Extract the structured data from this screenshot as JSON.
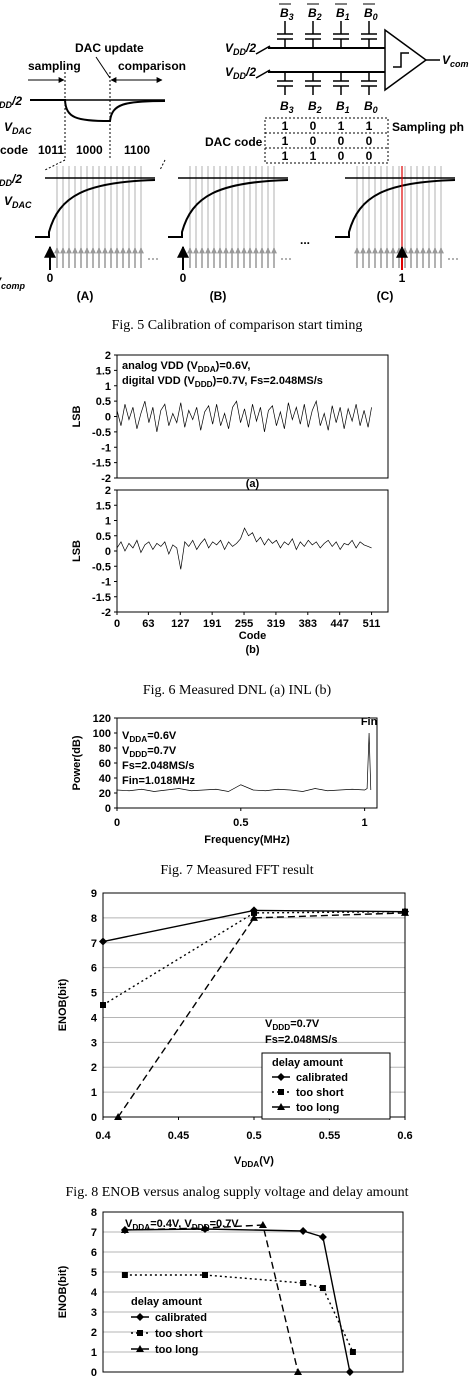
{
  "figure5": {
    "top_bits": [
      [
        "B",
        {
          "sub": "3"
        }
      ],
      [
        "B",
        {
          "sub": "2"
        }
      ],
      [
        "B",
        {
          "sub": "1"
        }
      ],
      [
        "B",
        {
          "sub": "0"
        }
      ]
    ],
    "bottom_bits": [
      [
        "B",
        {
          "sub": "3"
        }
      ],
      [
        "B",
        {
          "sub": "2"
        }
      ],
      [
        "B",
        {
          "sub": "1"
        }
      ],
      [
        "B",
        {
          "sub": "0"
        }
      ]
    ],
    "vdd_half_top": [
      "V",
      {
        "sub": "DD"
      },
      "/2"
    ],
    "vdd_half_bottom": [
      "V",
      {
        "sub": "DD"
      },
      "/2"
    ],
    "comparator_output": [
      "V",
      {
        "sub": "com"
      }
    ],
    "dac_code_label": "DAC code",
    "sampling_phase_label": "Sampling ph",
    "dac_code_rows": [
      [
        "1",
        "0",
        "1",
        "1"
      ],
      [
        "1",
        "0",
        "0",
        "0"
      ],
      [
        "1",
        "1",
        "0",
        "0"
      ]
    ],
    "timing": {
      "dac_update": "DAC update",
      "sampling": "sampling",
      "comparison": "comparison",
      "vdd_half": [
        "V",
        {
          "sub": "DD"
        },
        "/2"
      ],
      "vdac": [
        "V",
        {
          "sub": "DAC"
        }
      ],
      "code_label": "code",
      "codes": [
        "1011",
        "1000",
        "1100"
      ]
    },
    "panel_vdd_half": [
      "V",
      {
        "sub": "DD"
      },
      "/2"
    ],
    "panel_vdac": [
      "V",
      {
        "sub": "DAC"
      }
    ],
    "panel_vcomp": [
      "V",
      {
        "sub": "comp"
      }
    ],
    "ellipsis": "...",
    "panels": [
      {
        "label": "(A)",
        "start": 0,
        "start_color": "#000000"
      },
      {
        "label": "(B)",
        "start": 0,
        "start_color": "#000000"
      },
      {
        "label": "(C)",
        "start": 1,
        "start_color": "#e00000"
      }
    ]
  },
  "captions": {
    "fig5": "Fig. 5 Calibration of comparison start timing",
    "fig6": "Fig. 6 Measured DNL (a)  INL (b)",
    "fig7": "Fig. 7 Measured FFT result",
    "fig8": "Fig. 8 ENOB versus analog supply voltage and delay amount"
  },
  "chart_data": [
    {
      "type": "line",
      "y_label": "LSB",
      "panel_label": "(a)",
      "color": "#000000",
      "grid": false,
      "annotations": [
        [
          "analog VDD (V",
          {
            "sub": "DDA"
          },
          ")=0.6V,"
        ],
        [
          "digital VDD (V",
          {
            "sub": "DDD"
          },
          ")=0.7V, Fs=2.048MS/s"
        ]
      ],
      "xlim": [
        0,
        544
      ],
      "ylim": [
        -2,
        2
      ],
      "yticks": [
        2,
        1.5,
        1,
        0.5,
        0,
        -0.5,
        -1,
        -1.5,
        -2
      ],
      "x": [
        0,
        8,
        16,
        24,
        32,
        40,
        48,
        56,
        64,
        72,
        80,
        88,
        96,
        104,
        112,
        120,
        128,
        136,
        144,
        152,
        160,
        168,
        176,
        184,
        192,
        200,
        208,
        216,
        224,
        232,
        240,
        248,
        256,
        264,
        272,
        280,
        288,
        296,
        304,
        312,
        320,
        328,
        336,
        344,
        352,
        360,
        368,
        376,
        384,
        392,
        400,
        408,
        416,
        424,
        432,
        440,
        448,
        456,
        464,
        472,
        480,
        488,
        496,
        504,
        511
      ],
      "values": [
        0.2,
        -0.3,
        0.4,
        -0.1,
        0.3,
        -0.4,
        0.1,
        0.5,
        -0.2,
        0.3,
        -0.5,
        0.2,
        0.4,
        -0.3,
        0.1,
        -0.2,
        0.45,
        -0.35,
        0.2,
        -0.1,
        0.3,
        -0.45,
        0.15,
        0.35,
        -0.25,
        0.4,
        -0.3,
        0.1,
        -0.4,
        0.3,
        0.5,
        -0.2,
        0.25,
        -0.35,
        0.4,
        -0.15,
        0.3,
        -0.5,
        0.2,
        0.35,
        -0.3,
        0.15,
        -0.4,
        0.45,
        -0.1,
        0.3,
        -0.25,
        0.4,
        -0.35,
        0.2,
        0.5,
        -0.3,
        0.1,
        -0.45,
        0.35,
        -0.2,
        0.3,
        -0.4,
        0.25,
        -0.15,
        0.4,
        -0.3,
        0.2,
        -0.35,
        0.3
      ]
    },
    {
      "type": "line",
      "y_label": "LSB",
      "x_label": "Code",
      "panel_label": "(b)",
      "color": "#000000",
      "grid": false,
      "xlim": [
        0,
        544
      ],
      "xticks": [
        0,
        63,
        127,
        191,
        255,
        319,
        383,
        447,
        511
      ],
      "ylim": [
        -2,
        2
      ],
      "yticks": [
        2,
        1.5,
        1,
        0.5,
        0,
        -0.5,
        -1,
        -1.5,
        -2
      ],
      "x": [
        0,
        8,
        16,
        24,
        32,
        40,
        48,
        56,
        64,
        72,
        80,
        88,
        96,
        104,
        112,
        120,
        128,
        136,
        144,
        152,
        160,
        168,
        176,
        184,
        192,
        200,
        208,
        216,
        224,
        232,
        240,
        248,
        256,
        264,
        272,
        280,
        288,
        296,
        304,
        312,
        320,
        328,
        336,
        344,
        352,
        360,
        368,
        376,
        384,
        392,
        400,
        408,
        416,
        424,
        432,
        440,
        448,
        456,
        464,
        472,
        480,
        488,
        496,
        504,
        511
      ],
      "values": [
        0.1,
        0.3,
        0.0,
        0.25,
        0.1,
        0.35,
        -0.05,
        0.2,
        0.3,
        0.05,
        0.25,
        0.15,
        0.3,
        -0.1,
        0.2,
        0.1,
        -0.6,
        0.3,
        0.15,
        0.35,
        0.05,
        0.25,
        0.4,
        0.1,
        0.3,
        0.2,
        0.35,
        0.05,
        0.3,
        0.15,
        0.25,
        0.4,
        0.75,
        0.5,
        0.6,
        0.3,
        0.45,
        0.2,
        0.4,
        0.25,
        0.35,
        0.1,
        0.3,
        0.2,
        0.4,
        0.05,
        0.3,
        0.15,
        0.35,
        0.2,
        0.3,
        0.1,
        0.25,
        0.35,
        0.15,
        0.3,
        0.05,
        0.25,
        0.2,
        0.35,
        0.1,
        0.3,
        0.2,
        0.15,
        0.1
      ]
    },
    {
      "type": "line",
      "y_label": "Power(dB)",
      "x_label": "Frequency(MHz)",
      "peak_label": "Fin",
      "color": "#000000",
      "grid": false,
      "annotations": [
        [
          "V",
          {
            "sub": "DDA"
          },
          "=0.6V"
        ],
        [
          "V",
          {
            "sub": "DDD"
          },
          "=0.7V"
        ],
        [
          "Fs=2.048MS/s"
        ],
        [
          "Fin=1.018MHz"
        ]
      ],
      "xlim": [
        0,
        1.05
      ],
      "xticks": [
        0,
        0.5,
        1
      ],
      "ylim": [
        0,
        120
      ],
      "yticks": [
        120,
        100,
        80,
        60,
        40,
        20,
        0
      ],
      "x": [
        0,
        0.05,
        0.1,
        0.15,
        0.2,
        0.25,
        0.3,
        0.35,
        0.4,
        0.45,
        0.5,
        0.55,
        0.6,
        0.65,
        0.7,
        0.75,
        0.8,
        0.85,
        0.9,
        0.95,
        1.0,
        1.01,
        1.018,
        1.025
      ],
      "values": [
        24,
        23,
        25,
        22,
        24,
        26,
        23,
        24,
        25,
        22,
        31,
        24,
        23,
        25,
        24,
        22,
        26,
        23,
        24,
        25,
        24,
        26,
        100,
        24
      ]
    },
    {
      "type": "line",
      "y_label": "ENOB(bit)",
      "x_label": [
        "V",
        {
          "sub": "DDA"
        },
        "(V)"
      ],
      "grid": true,
      "annotations": [
        [
          "V",
          {
            "sub": "DDD"
          },
          "=0.7V"
        ],
        [
          "Fs=2.048MS/s"
        ]
      ],
      "legend_title": "delay amount",
      "xlim": [
        0.4,
        0.6
      ],
      "xticks": [
        0.4,
        0.45,
        0.5,
        0.55,
        0.6
      ],
      "ylim": [
        0,
        9
      ],
      "yticks": [
        9,
        8,
        7,
        6,
        5,
        4,
        3,
        2,
        1,
        0
      ],
      "series": [
        {
          "name": "calibrated",
          "color": "#000000",
          "dash": "solid",
          "marker": "diamond",
          "x": [
            0.4,
            0.5,
            0.6
          ],
          "values": [
            7.05,
            8.3,
            8.25
          ]
        },
        {
          "name": "too short",
          "color": "#000000",
          "dash": "dotted",
          "marker": "square",
          "x": [
            0.4,
            0.5,
            0.6
          ],
          "values": [
            4.5,
            8.2,
            8.25
          ]
        },
        {
          "name": "too long",
          "color": "#000000",
          "dash": "dashed",
          "marker": "triangle",
          "x": [
            0.41,
            0.5,
            0.6
          ],
          "values": [
            0,
            8.0,
            8.2
          ]
        }
      ]
    },
    {
      "type": "line",
      "y_label": "ENOB(bit)",
      "grid": true,
      "annotations": [
        [
          "V",
          {
            "sub": "DDA"
          },
          "=0.4V, V",
          {
            "sub": "DDD"
          },
          "=0.7V"
        ]
      ],
      "legend_title": "delay amount",
      "xlim": [
        0,
        100
      ],
      "ylim": [
        0,
        8
      ],
      "yticks": [
        8,
        7,
        6,
        5,
        4,
        3,
        2,
        1,
        0
      ],
      "series": [
        {
          "name": "calibrated",
          "color": "#000000",
          "dash": "solid",
          "marker": "diamond",
          "x": [
            7.3,
            34,
            66.7,
            73.3,
            82.3
          ],
          "values": [
            7.1,
            7.15,
            7.05,
            6.75,
            0
          ]
        },
        {
          "name": "too short",
          "color": "#000000",
          "dash": "dotted",
          "marker": "square",
          "x": [
            7.3,
            34,
            66.7,
            73.3,
            83.3
          ],
          "values": [
            4.85,
            4.85,
            4.45,
            4.2,
            1.0
          ]
        },
        {
          "name": "too long",
          "color": "#000000",
          "dash": "dashed",
          "marker": "triangle",
          "x": [
            7.3,
            34,
            53.3,
            65
          ],
          "values": [
            7.1,
            7.2,
            7.35,
            0
          ]
        }
      ]
    }
  ]
}
